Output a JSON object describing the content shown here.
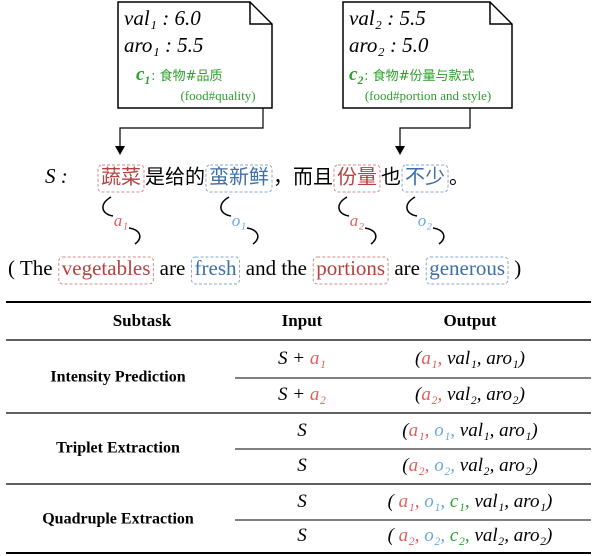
{
  "boxes": [
    {
      "val": "val₁ : 6.0",
      "aro": "aro₁ : 5.5",
      "category": "c₁",
      "category_zh": ": 食物#品质",
      "category_en": "(food#quality)"
    },
    {
      "val": "val₂ : 5.5",
      "aro": "aro₂ : 5.0",
      "category": "c₂",
      "category_zh": ": 食物#份量与款式",
      "category_en": "(food#portion and style)"
    }
  ],
  "sentence": {
    "label": "S :",
    "segments": [
      {
        "text": "蔬菜",
        "color": "#b5423f"
      },
      {
        "text": "是给的"
      },
      {
        "text": "蛮新鲜",
        "color": "#3d6fa8"
      },
      {
        "text": "，而且"
      },
      {
        "text": "份量",
        "color": "#b5423f"
      },
      {
        "text": "也"
      },
      {
        "text": "不少",
        "color": "#3d6fa8"
      },
      {
        "text": "。"
      }
    ],
    "annotations": [
      {
        "text": "a₁",
        "color": "#e06060"
      },
      {
        "text": "o₁",
        "color": "#6aa8e0"
      },
      {
        "text": "a₂",
        "color": "#e06060"
      },
      {
        "text": "o₂",
        "color": "#6aa8e0"
      }
    ]
  },
  "translation": {
    "segments": [
      {
        "text": "( The "
      },
      {
        "text": "vegetables",
        "color": "#b5423f"
      },
      {
        "text": " are "
      },
      {
        "text": "fresh",
        "color": "#3d6fa8"
      },
      {
        "text": " and the "
      },
      {
        "text": "portions",
        "color": "#b5423f"
      },
      {
        "text": " are "
      },
      {
        "text": "generous",
        "color": "#3d6fa8"
      },
      {
        "text": " )"
      }
    ]
  },
  "table": {
    "header": [
      "Subtask",
      "Input",
      "Output"
    ],
    "groups": [
      {
        "subtask": "Intensity Prediction",
        "rows": [
          {
            "input": [
              {
                "text": "S + "
              },
              {
                "text": "a₁",
                "color": "#e06060"
              }
            ],
            "output": [
              {
                "text": "("
              },
              {
                "text": "a₁,",
                "color": "#e06060"
              },
              {
                "text": " val₁, aro₁)"
              }
            ]
          },
          {
            "input": [
              {
                "text": "S + "
              },
              {
                "text": "a₂",
                "color": "#e06060"
              }
            ],
            "output": [
              {
                "text": "("
              },
              {
                "text": "a₂,",
                "color": "#e06060"
              },
              {
                "text": " val₂, aro₂)"
              }
            ]
          }
        ]
      },
      {
        "subtask": "Triplet Extraction",
        "rows": [
          {
            "input": [
              {
                "text": "S"
              }
            ],
            "output": [
              {
                "text": "("
              },
              {
                "text": "a₁, ",
                "color": "#e06060"
              },
              {
                "text": "o₁,",
                "color": "#6aa8e0"
              },
              {
                "text": " val₁, aro₁)"
              }
            ]
          },
          {
            "input": [
              {
                "text": "S"
              }
            ],
            "output": [
              {
                "text": "("
              },
              {
                "text": "a₂, ",
                "color": "#e06060"
              },
              {
                "text": "o₂,",
                "color": "#6aa8e0"
              },
              {
                "text": " val₂, aro₂)"
              }
            ]
          }
        ]
      },
      {
        "subtask": "Quadruple Extraction",
        "rows": [
          {
            "input": [
              {
                "text": "S"
              }
            ],
            "output": [
              {
                "text": "( "
              },
              {
                "text": "a₁, ",
                "color": "#e06060"
              },
              {
                "text": "o₁, ",
                "color": "#6aa8e0"
              },
              {
                "text": "c₁,",
                "color": "#2ca02c"
              },
              {
                "text": " val₁, aro₁)"
              }
            ]
          },
          {
            "input": [
              {
                "text": "S"
              }
            ],
            "output": [
              {
                "text": "( "
              },
              {
                "text": "a₂, ",
                "color": "#e06060"
              },
              {
                "text": "o₂, ",
                "color": "#6aa8e0"
              },
              {
                "text": "c₂,",
                "color": "#2ca02c"
              },
              {
                "text": " val₂, aro₂)"
              }
            ]
          }
        ]
      }
    ]
  }
}
